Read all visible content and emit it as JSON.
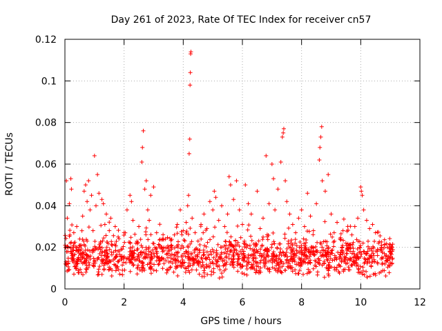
{
  "chart_data": {
    "type": "scatter",
    "title": "Day 261 of 2023, Rate Of TEC Index for receiver cn57",
    "xlabel": "GPS time / hours",
    "ylabel": "ROTI / TECUs",
    "xlim": [
      0,
      12
    ],
    "ylim": [
      0,
      0.12
    ],
    "xticks": [
      0,
      2,
      4,
      6,
      8,
      10,
      12
    ],
    "xtick_labels": [
      "0",
      "2",
      "4",
      "6",
      "8",
      "10",
      "12"
    ],
    "yticks": [
      0,
      0.02,
      0.04,
      0.06,
      0.08,
      0.1,
      0.12
    ],
    "ytick_labels": [
      "0",
      "0.02",
      "0.04",
      "0.06",
      "0.08",
      "0.1",
      "0.12"
    ],
    "grid": true,
    "marker": "plus",
    "series": [
      {
        "name": "cn57",
        "color": "#ff0000",
        "points": [
          [
            0.02,
            0.012
          ],
          [
            0.05,
            0.052
          ],
          [
            0.08,
            0.034
          ],
          [
            0.1,
            0.018
          ],
          [
            0.12,
            0.009
          ],
          [
            0.15,
            0.041
          ],
          [
            0.18,
            0.022
          ],
          [
            0.2,
            0.053
          ],
          [
            0.22,
            0.048
          ],
          [
            0.25,
            0.015
          ],
          [
            0.3,
            0.027
          ],
          [
            0.35,
            0.011
          ],
          [
            0.4,
            0.03
          ],
          [
            0.45,
            0.019
          ],
          [
            0.5,
            0.024
          ],
          [
            0.55,
            0.013
          ],
          [
            0.6,
            0.035
          ],
          [
            0.65,
            0.047
          ],
          [
            0.7,
            0.05
          ],
          [
            0.75,
            0.042
          ],
          [
            0.8,
            0.052
          ],
          [
            0.85,
            0.038
          ],
          [
            0.9,
            0.045
          ],
          [
            0.95,
            0.028
          ],
          [
            1.0,
            0.064
          ],
          [
            1.05,
            0.04
          ],
          [
            1.1,
            0.055
          ],
          [
            1.15,
            0.046
          ],
          [
            1.2,
            0.022
          ],
          [
            1.25,
            0.043
          ],
          [
            1.3,
            0.041
          ],
          [
            1.35,
            0.031
          ],
          [
            1.4,
            0.036
          ],
          [
            1.45,
            0.017
          ],
          [
            1.5,
            0.028
          ],
          [
            1.55,
            0.034
          ],
          [
            1.6,
            0.021
          ],
          [
            1.7,
            0.03
          ],
          [
            1.8,
            0.025
          ],
          [
            1.9,
            0.019
          ],
          [
            2.0,
            0.027
          ],
          [
            2.1,
            0.038
          ],
          [
            2.2,
            0.045
          ],
          [
            2.25,
            0.042
          ],
          [
            2.3,
            0.033
          ],
          [
            2.4,
            0.022
          ],
          [
            2.5,
            0.03
          ],
          [
            2.6,
            0.061
          ],
          [
            2.62,
            0.068
          ],
          [
            2.65,
            0.076
          ],
          [
            2.7,
            0.048
          ],
          [
            2.75,
            0.052
          ],
          [
            2.8,
            0.038
          ],
          [
            2.85,
            0.033
          ],
          [
            2.9,
            0.045
          ],
          [
            3.0,
            0.049
          ],
          [
            3.1,
            0.027
          ],
          [
            3.2,
            0.021
          ],
          [
            3.3,
            0.018
          ],
          [
            3.4,
            0.024
          ],
          [
            3.5,
            0.02
          ],
          [
            3.6,
            0.019
          ],
          [
            3.7,
            0.026
          ],
          [
            3.8,
            0.031
          ],
          [
            3.9,
            0.038
          ],
          [
            4.0,
            0.028
          ],
          [
            4.1,
            0.032
          ],
          [
            4.15,
            0.04
          ],
          [
            4.18,
            0.045
          ],
          [
            4.2,
            0.065
          ],
          [
            4.22,
            0.072
          ],
          [
            4.23,
            0.098
          ],
          [
            4.24,
            0.104
          ],
          [
            4.25,
            0.113
          ],
          [
            4.26,
            0.114
          ],
          [
            4.3,
            0.034
          ],
          [
            4.4,
            0.027
          ],
          [
            4.5,
            0.023
          ],
          [
            4.6,
            0.031
          ],
          [
            4.7,
            0.036
          ],
          [
            4.8,
            0.029
          ],
          [
            4.9,
            0.042
          ],
          [
            5.0,
            0.038
          ],
          [
            5.05,
            0.047
          ],
          [
            5.1,
            0.044
          ],
          [
            5.2,
            0.033
          ],
          [
            5.3,
            0.04
          ],
          [
            5.4,
            0.03
          ],
          [
            5.5,
            0.036
          ],
          [
            5.55,
            0.054
          ],
          [
            5.6,
            0.05
          ],
          [
            5.7,
            0.043
          ],
          [
            5.8,
            0.052
          ],
          [
            5.9,
            0.038
          ],
          [
            6.0,
            0.031
          ],
          [
            6.1,
            0.05
          ],
          [
            6.2,
            0.041
          ],
          [
            6.3,
            0.036
          ],
          [
            6.5,
            0.047
          ],
          [
            6.6,
            0.029
          ],
          [
            6.7,
            0.034
          ],
          [
            6.8,
            0.064
          ],
          [
            6.9,
            0.041
          ],
          [
            7.0,
            0.06
          ],
          [
            7.05,
            0.053
          ],
          [
            7.1,
            0.038
          ],
          [
            7.2,
            0.048
          ],
          [
            7.3,
            0.061
          ],
          [
            7.35,
            0.073
          ],
          [
            7.38,
            0.075
          ],
          [
            7.4,
            0.077
          ],
          [
            7.45,
            0.052
          ],
          [
            7.5,
            0.042
          ],
          [
            7.6,
            0.036
          ],
          [
            7.7,
            0.031
          ],
          [
            7.8,
            0.027
          ],
          [
            7.9,
            0.034
          ],
          [
            8.0,
            0.038
          ],
          [
            8.1,
            0.03
          ],
          [
            8.2,
            0.046
          ],
          [
            8.3,
            0.035
          ],
          [
            8.4,
            0.028
          ],
          [
            8.5,
            0.041
          ],
          [
            8.6,
            0.062
          ],
          [
            8.62,
            0.068
          ],
          [
            8.65,
            0.073
          ],
          [
            8.68,
            0.078
          ],
          [
            8.7,
            0.052
          ],
          [
            8.8,
            0.047
          ],
          [
            8.9,
            0.055
          ],
          [
            9.0,
            0.036
          ],
          [
            9.1,
            0.027
          ],
          [
            9.2,
            0.032
          ],
          [
            9.3,
            0.024
          ],
          [
            9.4,
            0.028
          ],
          [
            9.5,
            0.022
          ],
          [
            9.6,
            0.02
          ],
          [
            9.7,
            0.026
          ],
          [
            9.8,
            0.03
          ],
          [
            9.9,
            0.034
          ],
          [
            10.0,
            0.049
          ],
          [
            10.02,
            0.047
          ],
          [
            10.05,
            0.045
          ],
          [
            10.1,
            0.038
          ],
          [
            10.2,
            0.033
          ],
          [
            10.3,
            0.029
          ],
          [
            10.4,
            0.031
          ],
          [
            10.5,
            0.027
          ],
          [
            10.6,
            0.022
          ],
          [
            10.7,
            0.019
          ],
          [
            10.8,
            0.017
          ],
          [
            10.9,
            0.02
          ],
          [
            11.0,
            0.018
          ],
          [
            11.05,
            0.012
          ]
        ],
        "baseline_band": {
          "x_range": [
            0,
            11.1
          ],
          "y_min": 0.005,
          "y_max": 0.025,
          "approx_point_count": 1400
        }
      }
    ]
  }
}
